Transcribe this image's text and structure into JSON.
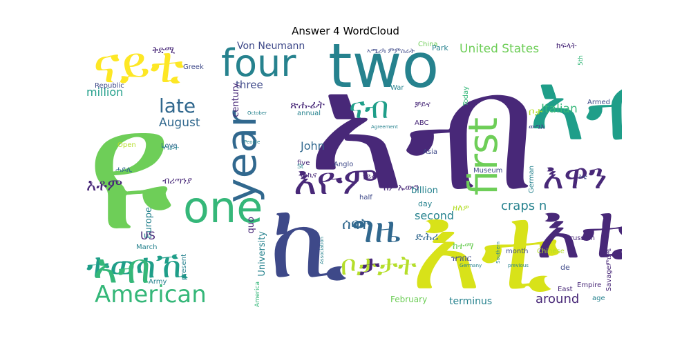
{
  "title": "Answer 4 WordCloud",
  "palette": {
    "dark_purple": "#482878",
    "indigo": "#3e4989",
    "blue": "#31688e",
    "teal": "#26828e",
    "green_teal": "#1f9e89",
    "green": "#35b779",
    "light_green": "#6ece58",
    "lime": "#b5de2b",
    "yellow": "#fde725"
  },
  "words": [
    {
      "id": "w-ahn",
      "text": "ኣብ"
    },
    {
      "id": "w-yi",
      "text": "ዩ"
    },
    {
      "id": "w-eti",
      "text": "እቲ"
    },
    {
      "id": "w-two",
      "text": "two"
    },
    {
      "id": "w-nayti",
      "text": "ናይቲ"
    },
    {
      "id": "w-four",
      "text": "four"
    },
    {
      "id": "w-year",
      "text": "year"
    },
    {
      "id": "w-one",
      "text": "one"
    },
    {
      "id": "w-ki",
      "text": "ኪ"
    },
    {
      "id": "w-first",
      "text": "first"
    },
    {
      "id": "w-ab",
      "text": "ኣብ"
    },
    {
      "id": "w-eyom",
      "text": "እዮም"
    },
    {
      "id": "w-ewan",
      "text": "እዋን"
    },
    {
      "id": "w-american",
      "text": "American"
    },
    {
      "id": "w-ete",
      "text": "እቲ"
    },
    {
      "id": "w-gize",
      "text": "ግዜ"
    },
    {
      "id": "w-nab",
      "text": "ናብ"
    },
    {
      "id": "w-late",
      "text": "late"
    },
    {
      "id": "w-united",
      "text": "United States"
    },
    {
      "id": "w-crapsn",
      "text": "craps n"
    },
    {
      "id": "w-kdmi",
      "text": "ቅድሚ"
    },
    {
      "id": "w-vonneumann",
      "text": "Von Neumann"
    },
    {
      "id": "w-amerika",
      "text": "ኣሜሪካ ምምስራት"
    },
    {
      "id": "w-china",
      "text": "China"
    },
    {
      "id": "w-park",
      "text": "Park"
    },
    {
      "id": "w-kfelat",
      "text": "ክፍላት"
    },
    {
      "id": "w-august",
      "text": "August"
    },
    {
      "id": "w-three",
      "text": "three"
    },
    {
      "id": "w-million",
      "text": "million"
    },
    {
      "id": "w-italian",
      "text": "Italian"
    },
    {
      "id": "w-etomi",
      "text": "እቶም"
    },
    {
      "id": "w-john",
      "text": "John"
    },
    {
      "id": "w-second",
      "text": "second"
    },
    {
      "id": "w-terminus",
      "text": "terminus"
    },
    {
      "id": "w-around",
      "text": "around"
    },
    {
      "id": "w-century",
      "text": "century"
    },
    {
      "id": "w-europe",
      "text": "Europe"
    },
    {
      "id": "w-university",
      "text": "University"
    },
    {
      "id": "w-quo",
      "text": "quo"
    },
    {
      "id": "w-us",
      "text": "US"
    },
    {
      "id": "w-february",
      "text": "February"
    },
    {
      "id": "w-ahnab",
      "text": "ኣብ"
    },
    {
      "id": "w-ta",
      "text": "ታ"
    },
    {
      "id": "w-bo",
      "text": "ቦታ"
    },
    {
      "id": "w-tsehfti",
      "text": "ጽሑፊት"
    },
    {
      "id": "w-kemkme",
      "text": "ከምኡውን"
    },
    {
      "id": "w-republic",
      "text": "Republic"
    },
    {
      "id": "w-greek",
      "text": "Greek"
    },
    {
      "id": "w-annual",
      "text": "annual"
    },
    {
      "id": "w-five",
      "text": "five"
    },
    {
      "id": "w-anglo",
      "text": "Anglo"
    },
    {
      "id": "w-asia",
      "text": "Asia"
    },
    {
      "id": "w-museum",
      "text": "Museum"
    },
    {
      "id": "w-billion",
      "text": "billion"
    },
    {
      "id": "w-german",
      "text": "German"
    },
    {
      "id": "w-armed",
      "text": "Armed"
    },
    {
      "id": "w-day",
      "text": "day"
    },
    {
      "id": "w-half",
      "text": "half"
    },
    {
      "id": "w-prussian",
      "text": "Prussian"
    },
    {
      "id": "w-month",
      "text": "month"
    },
    {
      "id": "w-march",
      "text": "March"
    },
    {
      "id": "w-present",
      "text": "present"
    },
    {
      "id": "w-army",
      "text": "Army"
    },
    {
      "id": "w-love",
      "text": "Love"
    },
    {
      "id": "w-open",
      "text": "Open"
    },
    {
      "id": "w-abc",
      "text": "ABC"
    },
    {
      "id": "w-october",
      "text": "October"
    },
    {
      "id": "w-people",
      "text": "People"
    },
    {
      "id": "w-agreement",
      "text": "Agreement"
    },
    {
      "id": "w-today",
      "text": "Today"
    },
    {
      "id": "w-war",
      "text": "War"
    },
    {
      "id": "w-st",
      "text": "St"
    },
    {
      "id": "w-america",
      "text": "America"
    },
    {
      "id": "w-association",
      "text": "Association"
    },
    {
      "id": "w-empire",
      "text": "Empire"
    },
    {
      "id": "w-east",
      "text": "East"
    },
    {
      "id": "w-age",
      "text": "age"
    },
    {
      "id": "w-savage",
      "text": "Savageምርጫ"
    },
    {
      "id": "w-chinese",
      "text": "Chinese"
    },
    {
      "id": "w-germany",
      "text": "Germany"
    },
    {
      "id": "w-southern",
      "text": "Southern"
    },
    {
      "id": "w-previous",
      "text": "previous"
    },
    {
      "id": "w-fifth",
      "text": "5th"
    },
    {
      "id": "w-de",
      "text": "de"
    },
    {
      "id": "w-bota",
      "text": "ቦታታት"
    },
    {
      "id": "w-tewesakhi",
      "text": "ተወሳኺ"
    },
    {
      "id": "w-sebat",
      "text": "ሰባት"
    },
    {
      "id": "w-brtany",
      "text": "ብሪጣንያ"
    },
    {
      "id": "w-gefa",
      "text": "ድሕሪ"
    },
    {
      "id": "w-ketema",
      "text": "ከተማ"
    },
    {
      "id": "w-zlemd",
      "text": "ዘለዎ"
    },
    {
      "id": "w-agra",
      "text": "ሃገራት"
    },
    {
      "id": "w-tfamel",
      "text": "ዝግበር"
    },
    {
      "id": "w-neyra",
      "text": "ነይሩ"
    },
    {
      "id": "w-chaina",
      "text": "ቻይና"
    },
    {
      "id": "w-mukhal",
      "text": "ውግእ"
    },
    {
      "id": "w-haile",
      "text": "ሓይሊ"
    },
    {
      "id": "w-mkni",
      "text": "መኪና"
    },
    {
      "id": "w-ebulo",
      "text": "እቲ"
    }
  ]
}
